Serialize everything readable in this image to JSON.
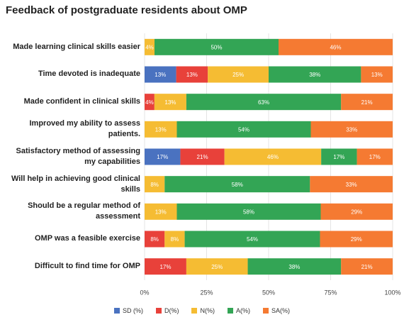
{
  "chart_data": {
    "type": "bar",
    "orientation": "horizontal",
    "stack": "percent",
    "title": "Feedback of postgraduate residents about OMP",
    "categories": [
      "Made learning clinical skills easier",
      "Time devoted is inadequate",
      "Made confident in clinical skills",
      "Improved my ability to assess patients.",
      "Satisfactory method of assessing my capabilities",
      "Will help in achieving good clinical skills",
      "Should be a regular method of assessment",
      "OMP was a feasible exercise",
      "Difficult to find time for OMP"
    ],
    "series": [
      {
        "name": "SD (%)",
        "color": "#4a72c0",
        "values": [
          0,
          13,
          0,
          0,
          17,
          0,
          0,
          0,
          0
        ],
        "value_labels": [
          null,
          "13%",
          null,
          null,
          "17%",
          null,
          null,
          null,
          null
        ]
      },
      {
        "name": "D(%)",
        "color": "#e8413a",
        "values": [
          0,
          13,
          4,
          0,
          21,
          0,
          0,
          8,
          17
        ],
        "value_labels": [
          null,
          "13%",
          "4%",
          null,
          "21%",
          null,
          null,
          "8%",
          "17%"
        ]
      },
      {
        "name": "N(%)",
        "color": "#f5bc33",
        "values": [
          4,
          25,
          13,
          13,
          46,
          8,
          13,
          8,
          25
        ],
        "value_labels": [
          "4%",
          "25%",
          "13%",
          "13%",
          "46%",
          "8%",
          "13%",
          "8%",
          "25%"
        ]
      },
      {
        "name": "A(%)",
        "color": "#33a555",
        "values": [
          50,
          38,
          63,
          54,
          17,
          58,
          58,
          54,
          38
        ],
        "value_labels": [
          "50%",
          "38%",
          "63%",
          "54%",
          "17%",
          "58%",
          "58%",
          "54%",
          "38%"
        ]
      },
      {
        "name": "SA(%)",
        "color": "#f57a32",
        "values": [
          46,
          13,
          21,
          33,
          17,
          33,
          29,
          29,
          21
        ],
        "value_labels": [
          "46%",
          "13%",
          "21%",
          "33%",
          "17%",
          "33%",
          "29%",
          "29%",
          "21%"
        ]
      }
    ],
    "xlim": [
      0,
      100
    ],
    "xticks": [
      {
        "value": 0,
        "label": "0%"
      },
      {
        "value": 25,
        "label": "25%"
      },
      {
        "value": 50,
        "label": "50%"
      },
      {
        "value": 75,
        "label": "75%"
      },
      {
        "value": 100,
        "label": "100%"
      }
    ],
    "grid": true
  }
}
